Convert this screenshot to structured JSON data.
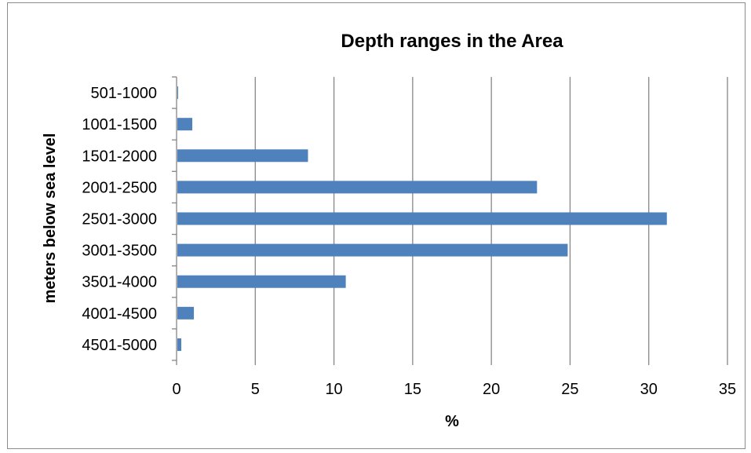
{
  "chart_data": {
    "type": "bar",
    "orientation": "horizontal",
    "title": "Depth ranges in the Area",
    "xlabel": "%",
    "ylabel": "meters below sea level",
    "categories": [
      "501-1000",
      "1001-1500",
      "1501-2000",
      "2001-2500",
      "2501-3000",
      "3001-3500",
      "3501-4000",
      "4001-4500",
      "4501-5000"
    ],
    "values": [
      0.05,
      0.95,
      8.3,
      22.85,
      31.1,
      24.8,
      10.7,
      1.05,
      0.25
    ],
    "xlim": [
      0,
      35
    ],
    "xticks": [
      "0",
      "5",
      "10",
      "15",
      "20",
      "25",
      "30",
      "35"
    ],
    "grid": "vertical",
    "legend": "none",
    "bar_color": "#4f81bd",
    "grid_color": "#868686"
  }
}
